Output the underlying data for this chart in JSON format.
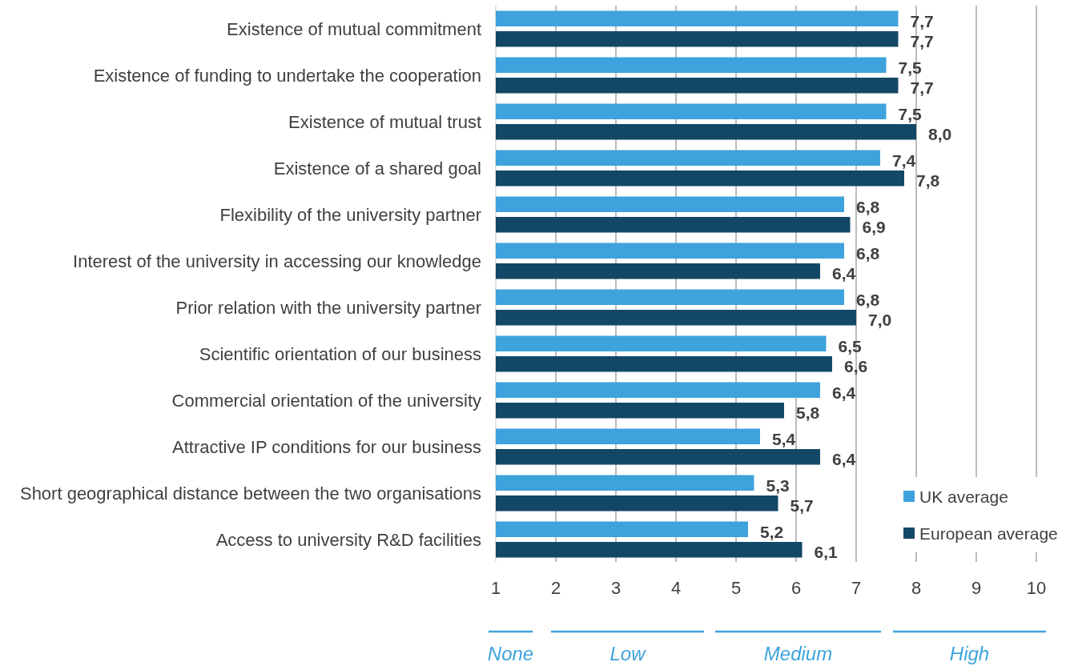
{
  "chart_data": {
    "type": "bar",
    "orientation": "horizontal",
    "categories": [
      "Existence of mutual commitment",
      "Existence of funding to undertake the cooperation",
      "Existence of mutual trust",
      "Existence of a shared goal",
      "Flexibility of the university partner",
      "Interest of the university in accessing our knowledge",
      "Prior relation with the university partner",
      "Scientific orientation of our business",
      "Commercial orientation of the university",
      "Attractive IP conditions for our business",
      "Short geographical distance between the two organisations",
      "Access to university R&D facilities"
    ],
    "series": [
      {
        "name": "UK average",
        "color": "#3ea3dc",
        "values": [
          7.7,
          7.5,
          7.5,
          7.4,
          6.8,
          6.8,
          6.8,
          6.5,
          6.4,
          5.4,
          5.3,
          5.2
        ],
        "value_labels": [
          "7,7",
          "7,5",
          "7,5",
          "7,4",
          "6,8",
          "6,8",
          "6,8",
          "6,5",
          "6,4",
          "5,4",
          "5,3",
          "5,2"
        ]
      },
      {
        "name": "European average",
        "color": "#134766",
        "values": [
          7.7,
          7.7,
          8.0,
          7.8,
          6.9,
          6.4,
          7.0,
          6.6,
          5.8,
          6.4,
          5.7,
          6.1
        ],
        "value_labels": [
          "7,7",
          "7,7",
          "8,0",
          "7,8",
          "6,9",
          "6,4",
          "7,0",
          "6,6",
          "5,8",
          "6,4",
          "5,7",
          "6,1"
        ]
      }
    ],
    "xlim": [
      1,
      10
    ],
    "xticks": [
      1,
      2,
      3,
      4,
      5,
      6,
      7,
      8,
      9,
      10
    ],
    "grid": "x",
    "legend": "bottom right",
    "annotations": [
      "None",
      "Low",
      "Medium",
      "High"
    ]
  }
}
